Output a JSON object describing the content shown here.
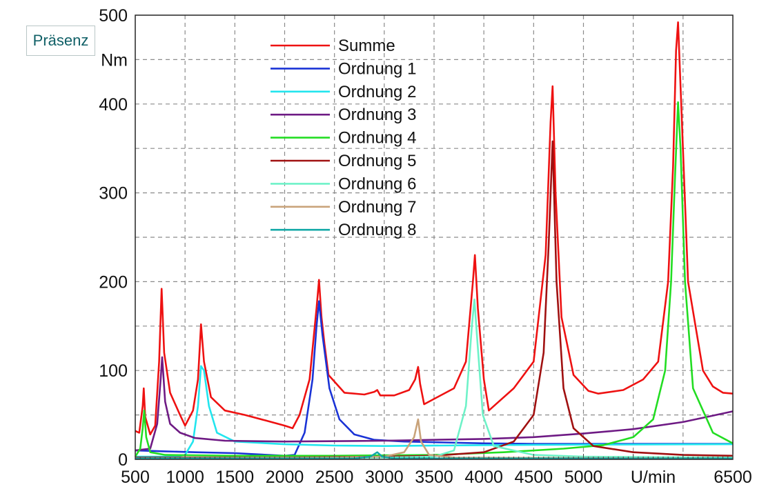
{
  "badge": {
    "label": "Präsenz"
  },
  "chart_data": {
    "type": "line",
    "xlabel": "U/min",
    "ylabel": "Nm",
    "xlim": [
      500,
      6500
    ],
    "ylim": [
      0,
      500
    ],
    "x_ticks": [
      500,
      1000,
      1500,
      2000,
      2500,
      3000,
      3500,
      4000,
      4500,
      5000,
      6500
    ],
    "y_ticks": [
      0,
      100,
      200,
      300,
      400,
      500
    ],
    "grid": true,
    "legend_position": "top-center",
    "series": [
      {
        "name": "Summe",
        "color": "#ee1111",
        "points": [
          [
            500,
            32
          ],
          [
            540,
            30
          ],
          [
            575,
            60
          ],
          [
            585,
            80
          ],
          [
            600,
            48
          ],
          [
            650,
            28
          ],
          [
            700,
            38
          ],
          [
            740,
            110
          ],
          [
            765,
            192
          ],
          [
            790,
            120
          ],
          [
            850,
            75
          ],
          [
            950,
            50
          ],
          [
            1000,
            38
          ],
          [
            1080,
            55
          ],
          [
            1130,
            90
          ],
          [
            1160,
            152
          ],
          [
            1190,
            110
          ],
          [
            1260,
            70
          ],
          [
            1400,
            55
          ],
          [
            1600,
            50
          ],
          [
            1800,
            44
          ],
          [
            2000,
            38
          ],
          [
            2080,
            35
          ],
          [
            2150,
            50
          ],
          [
            2250,
            90
          ],
          [
            2320,
            170
          ],
          [
            2345,
            202
          ],
          [
            2370,
            160
          ],
          [
            2400,
            130
          ],
          [
            2440,
            95
          ],
          [
            2600,
            75
          ],
          [
            2800,
            73
          ],
          [
            2900,
            76
          ],
          [
            2930,
            78
          ],
          [
            2960,
            72
          ],
          [
            3100,
            72
          ],
          [
            3250,
            78
          ],
          [
            3310,
            90
          ],
          [
            3340,
            104
          ],
          [
            3360,
            85
          ],
          [
            3400,
            62
          ],
          [
            3500,
            68
          ],
          [
            3700,
            80
          ],
          [
            3820,
            110
          ],
          [
            3890,
            200
          ],
          [
            3910,
            230
          ],
          [
            3940,
            170
          ],
          [
            4000,
            90
          ],
          [
            4050,
            55
          ],
          [
            4150,
            65
          ],
          [
            4300,
            80
          ],
          [
            4500,
            110
          ],
          [
            4620,
            230
          ],
          [
            4670,
            380
          ],
          [
            4690,
            420
          ],
          [
            4720,
            300
          ],
          [
            4780,
            160
          ],
          [
            4900,
            95
          ],
          [
            5050,
            77
          ],
          [
            5150,
            74
          ],
          [
            5400,
            78
          ],
          [
            5600,
            90
          ],
          [
            5750,
            110
          ],
          [
            5850,
            200
          ],
          [
            5900,
            330
          ],
          [
            5930,
            460
          ],
          [
            5950,
            492
          ],
          [
            5975,
            420
          ],
          [
            6050,
            200
          ],
          [
            6200,
            100
          ],
          [
            6300,
            82
          ],
          [
            6400,
            75
          ],
          [
            6500,
            74
          ]
        ]
      },
      {
        "name": "Ordnung 1",
        "color": "#1a33d6",
        "points": [
          [
            500,
            10
          ],
          [
            800,
            9
          ],
          [
            1100,
            8
          ],
          [
            1500,
            7
          ],
          [
            2000,
            4
          ],
          [
            2100,
            5
          ],
          [
            2200,
            30
          ],
          [
            2280,
            90
          ],
          [
            2320,
            150
          ],
          [
            2345,
            178
          ],
          [
            2380,
            140
          ],
          [
            2450,
            80
          ],
          [
            2550,
            45
          ],
          [
            2700,
            28
          ],
          [
            2900,
            22
          ],
          [
            3200,
            20
          ],
          [
            3600,
            19
          ],
          [
            4000,
            18
          ],
          [
            4500,
            17.5
          ],
          [
            5000,
            17.5
          ],
          [
            6500,
            17.5
          ]
        ]
      },
      {
        "name": "Ordnung 2",
        "color": "#22e5ee",
        "points": [
          [
            500,
            3
          ],
          [
            900,
            3
          ],
          [
            1000,
            5
          ],
          [
            1080,
            20
          ],
          [
            1130,
            60
          ],
          [
            1160,
            105
          ],
          [
            1190,
            100
          ],
          [
            1240,
            60
          ],
          [
            1320,
            30
          ],
          [
            1500,
            20
          ],
          [
            2000,
            17
          ],
          [
            2500,
            15.5
          ],
          [
            3000,
            15
          ],
          [
            4000,
            16
          ],
          [
            5000,
            16.5
          ],
          [
            6500,
            17
          ]
        ]
      },
      {
        "name": "Ordnung 3",
        "color": "#6e1a84",
        "points": [
          [
            500,
            10
          ],
          [
            650,
            12
          ],
          [
            720,
            40
          ],
          [
            755,
            90
          ],
          [
            770,
            115
          ],
          [
            800,
            65
          ],
          [
            850,
            40
          ],
          [
            950,
            30
          ],
          [
            1100,
            24
          ],
          [
            1400,
            21
          ],
          [
            2000,
            20
          ],
          [
            3000,
            21
          ],
          [
            3500,
            22
          ],
          [
            4000,
            23
          ],
          [
            4500,
            25
          ],
          [
            5000,
            29
          ],
          [
            5500,
            34
          ],
          [
            6000,
            42
          ],
          [
            6500,
            54
          ]
        ]
      },
      {
        "name": "Ordnung 4",
        "color": "#22dd22",
        "points": [
          [
            500,
            3
          ],
          [
            550,
            12
          ],
          [
            575,
            35
          ],
          [
            590,
            55
          ],
          [
            610,
            25
          ],
          [
            650,
            8
          ],
          [
            800,
            5
          ],
          [
            1500,
            4
          ],
          [
            2500,
            4
          ],
          [
            3500,
            5
          ],
          [
            4200,
            8
          ],
          [
            4800,
            12
          ],
          [
            5200,
            16
          ],
          [
            5500,
            25
          ],
          [
            5700,
            45
          ],
          [
            5820,
            100
          ],
          [
            5880,
            200
          ],
          [
            5920,
            320
          ],
          [
            5950,
            402
          ],
          [
            5975,
            350
          ],
          [
            6020,
            200
          ],
          [
            6100,
            80
          ],
          [
            6300,
            30
          ],
          [
            6500,
            18
          ]
        ]
      },
      {
        "name": "Ordnung 5",
        "color": "#a01010",
        "points": [
          [
            500,
            2
          ],
          [
            1000,
            2
          ],
          [
            2000,
            2
          ],
          [
            3000,
            3
          ],
          [
            3500,
            4
          ],
          [
            4000,
            8
          ],
          [
            4300,
            20
          ],
          [
            4500,
            50
          ],
          [
            4600,
            120
          ],
          [
            4650,
            240
          ],
          [
            4690,
            358
          ],
          [
            4730,
            200
          ],
          [
            4800,
            80
          ],
          [
            4900,
            35
          ],
          [
            5100,
            15
          ],
          [
            5500,
            8
          ],
          [
            6000,
            5
          ],
          [
            6500,
            4
          ]
        ]
      },
      {
        "name": "Ordnung 6",
        "color": "#6ef2c8",
        "points": [
          [
            500,
            1
          ],
          [
            3000,
            2
          ],
          [
            3500,
            3
          ],
          [
            3700,
            10
          ],
          [
            3820,
            60
          ],
          [
            3880,
            150
          ],
          [
            3905,
            180
          ],
          [
            3930,
            140
          ],
          [
            3990,
            50
          ],
          [
            4100,
            15
          ],
          [
            4500,
            5
          ],
          [
            5000,
            3
          ],
          [
            6500,
            2
          ]
        ]
      },
      {
        "name": "Ordnung 7",
        "color": "#c9a37a",
        "points": [
          [
            500,
            1
          ],
          [
            2500,
            2
          ],
          [
            3000,
            3
          ],
          [
            3200,
            8
          ],
          [
            3300,
            25
          ],
          [
            3340,
            45
          ],
          [
            3370,
            20
          ],
          [
            3450,
            5
          ],
          [
            3700,
            2
          ],
          [
            6500,
            1
          ]
        ]
      },
      {
        "name": "Ordnung 8",
        "color": "#12a8a6",
        "points": [
          [
            500,
            1
          ],
          [
            2700,
            1
          ],
          [
            2860,
            3
          ],
          [
            2930,
            8
          ],
          [
            2980,
            3
          ],
          [
            3100,
            1
          ],
          [
            6500,
            1
          ]
        ]
      }
    ]
  }
}
